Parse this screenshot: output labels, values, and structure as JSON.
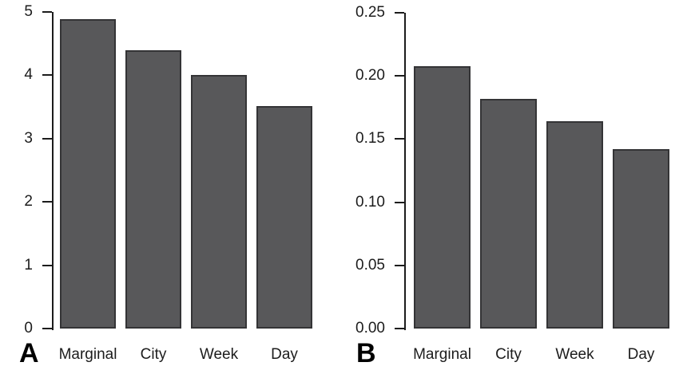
{
  "figure": {
    "background": "#ffffff",
    "bar_fill": "#58585a",
    "bar_border": "#343436",
    "axis_color": "#1c1c1c",
    "text_color": "#1c1c1c"
  },
  "chart_data": [
    {
      "type": "bar",
      "panel_label": "A",
      "title": "",
      "xlabel": "",
      "ylabel": "",
      "categories": [
        "Marginal",
        "City",
        "Week",
        "Day"
      ],
      "values": [
        4.89,
        4.39,
        4.01,
        3.52
      ],
      "ylim": [
        0,
        5
      ],
      "yticks": [
        0,
        1,
        2,
        3,
        4,
        5
      ],
      "ytick_labels": [
        "0",
        "1",
        "2",
        "3",
        "4",
        "5"
      ],
      "grid": false,
      "legend": null
    },
    {
      "type": "bar",
      "panel_label": "B",
      "title": "",
      "xlabel": "",
      "ylabel": "",
      "categories": [
        "Marginal",
        "City",
        "Week",
        "Day"
      ],
      "values": [
        0.208,
        0.182,
        0.164,
        0.142
      ],
      "ylim": [
        0,
        0.25
      ],
      "yticks": [
        0,
        0.05,
        0.1,
        0.15,
        0.2,
        0.25
      ],
      "ytick_labels": [
        "0.00",
        "0.05",
        "0.10",
        "0.15",
        "0.20",
        "0.25"
      ],
      "grid": false,
      "legend": null
    }
  ]
}
